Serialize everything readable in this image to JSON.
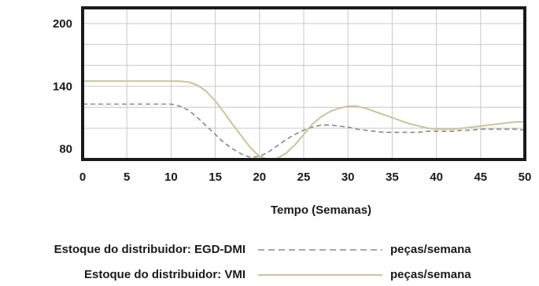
{
  "chart_data": {
    "type": "line",
    "title": "",
    "xlabel": "Tempo (Semanas)",
    "ylabel": "",
    "xlim": [
      0,
      50
    ],
    "ylim": [
      70,
      215
    ],
    "x_ticks": [
      0,
      5,
      10,
      15,
      20,
      25,
      30,
      35,
      40,
      45,
      50
    ],
    "y_ticks": [
      80,
      140,
      200
    ],
    "grid": true,
    "legend_position": "bottom",
    "series": [
      {
        "name": "Estoque do distribuidor: EGD-DMI",
        "unit": "peças/semana",
        "style": "dashed",
        "color": "#8a8a8a",
        "x": [
          0,
          5,
          10,
          11,
          12,
          13,
          14,
          15,
          16,
          17,
          18,
          19,
          20,
          21,
          22,
          23,
          24,
          25,
          26,
          27,
          28,
          29,
          30,
          31,
          32,
          33,
          34,
          35,
          36,
          37,
          38,
          39,
          40,
          41,
          42,
          43,
          44,
          45,
          46,
          47,
          48,
          49,
          50
        ],
        "values": [
          123,
          123,
          123,
          121,
          117,
          110,
          102,
          94,
          86,
          80,
          75,
          72,
          73,
          77,
          83,
          89,
          94,
          98,
          101,
          103,
          103,
          102,
          101,
          99,
          98,
          97,
          96,
          96,
          96,
          96,
          96,
          97,
          97,
          97,
          97,
          98,
          98,
          99,
          99,
          99,
          99,
          99,
          98
        ]
      },
      {
        "name": "Estoque do distribuidor: VMI",
        "unit": "peças/semana",
        "style": "solid",
        "color": "#cfc29b",
        "x": [
          0,
          5,
          10,
          11,
          12,
          13,
          14,
          15,
          16,
          17,
          18,
          19,
          20,
          21,
          22,
          23,
          24,
          25,
          26,
          27,
          28,
          29,
          30,
          31,
          32,
          33,
          34,
          35,
          36,
          37,
          38,
          39,
          40,
          41,
          42,
          43,
          44,
          45,
          46,
          47,
          48,
          49,
          50
        ],
        "values": [
          145,
          145,
          145,
          145,
          144,
          141,
          135,
          126,
          115,
          103,
          92,
          81,
          73,
          70,
          71,
          76,
          84,
          94,
          104,
          111,
          116,
          119,
          121,
          121,
          119,
          116,
          113,
          110,
          107,
          104,
          102,
          100,
          99,
          99,
          99,
          100,
          101,
          102,
          103,
          104,
          105,
          106,
          106
        ]
      }
    ]
  }
}
